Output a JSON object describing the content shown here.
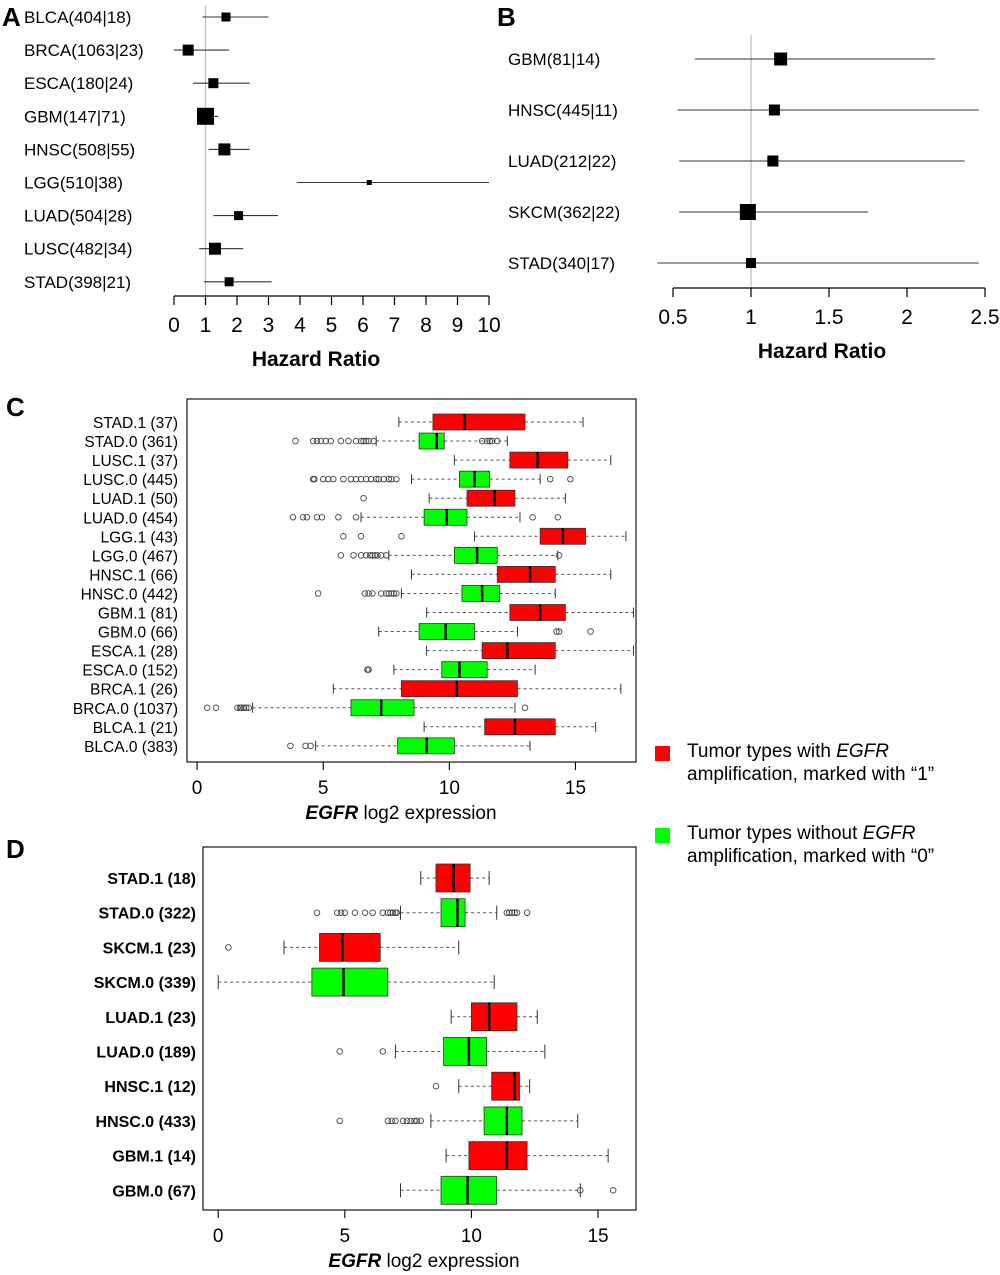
{
  "chart_data": [
    {
      "panel": "A",
      "type": "forest",
      "xlabel": "Hazard Ratio",
      "xlim": [
        0,
        10
      ],
      "xticks": [
        "0",
        "1",
        "2",
        "3",
        "4",
        "5",
        "6",
        "7",
        "8",
        "9",
        "10"
      ],
      "reference_line": 1,
      "rows": [
        {
          "label": "BLCA(404|18)",
          "hr": 1.65,
          "lo": 0.9,
          "hi": 3.0
        },
        {
          "label": "BRCA(1063|23)",
          "hr": 0.45,
          "lo": 0.0,
          "hi": 1.75
        },
        {
          "label": "ESCA(180|24)",
          "hr": 1.25,
          "lo": 0.6,
          "hi": 2.4
        },
        {
          "label": "GBM(147|71)",
          "hr": 1.0,
          "lo": 0.75,
          "hi": 1.4
        },
        {
          "label": "HNSC(508|55)",
          "hr": 1.6,
          "lo": 1.1,
          "hi": 2.4
        },
        {
          "label": "LGG(510|38)",
          "hr": 6.2,
          "lo": 3.9,
          "hi": 10.0
        },
        {
          "label": "LUAD(504|28)",
          "hr": 2.05,
          "lo": 1.25,
          "hi": 3.3
        },
        {
          "label": "LUSC(482|34)",
          "hr": 1.3,
          "lo": 0.8,
          "hi": 2.2
        },
        {
          "label": "STAD(398|21)",
          "hr": 1.75,
          "lo": 0.95,
          "hi": 3.1
        }
      ],
      "marker_sizes": [
        9,
        11,
        10,
        17,
        12,
        5,
        9,
        12,
        9
      ]
    },
    {
      "panel": "B",
      "type": "forest",
      "xlabel": "Hazard Ratio",
      "xlim": [
        0.5,
        2.5
      ],
      "xticks": [
        "0.5",
        "1",
        "1.5",
        "2",
        "2.5"
      ],
      "reference_line": 1,
      "rows": [
        {
          "label": "GBM(81|14)",
          "hr": 1.19,
          "lo": 0.64,
          "hi": 2.18
        },
        {
          "label": "HNSC(445|11)",
          "hr": 1.15,
          "lo": 0.53,
          "hi": 2.46
        },
        {
          "label": "LUAD(212|22)",
          "hr": 1.14,
          "lo": 0.54,
          "hi": 2.37
        },
        {
          "label": "SKCM(362|22)",
          "hr": 0.98,
          "lo": 0.54,
          "hi": 1.75
        },
        {
          "label": "STAD(340|17)",
          "hr": 1.0,
          "lo": 0.4,
          "hi": 2.46
        }
      ],
      "marker_sizes": [
        13,
        11,
        11,
        16,
        10
      ]
    },
    {
      "panel": "C",
      "type": "boxplot",
      "xlabel_italic": "EGFR",
      "xlabel_rest": " log2 expression",
      "xlim": [
        -0.4,
        17.4
      ],
      "xticks": [
        "0",
        "5",
        "10",
        "15"
      ],
      "categories": [
        {
          "label": "STAD.1 (37)",
          "group": 1,
          "wlo": 8.0,
          "q1": 9.35,
          "med": 10.6,
          "q3": 13.0,
          "whi": 15.3,
          "out": []
        },
        {
          "label": "STAD.0 (361)",
          "group": 0,
          "wlo": 7.1,
          "q1": 8.8,
          "med": 9.5,
          "q3": 9.8,
          "whi": 12.3,
          "out": [
            3.9,
            4.6,
            4.75,
            4.9,
            5.1,
            5.3,
            5.7,
            6.0,
            6.3,
            6.5,
            6.6,
            6.7,
            6.8,
            7.0,
            11.3,
            11.5,
            11.6,
            11.7,
            11.9
          ]
        },
        {
          "label": "LUSC.1 (37)",
          "group": 1,
          "wlo": 10.2,
          "q1": 12.4,
          "med": 13.5,
          "q3": 14.7,
          "whi": 16.4,
          "out": []
        },
        {
          "label": "LUSC.0 (445)",
          "group": 0,
          "wlo": 8.5,
          "q1": 10.4,
          "med": 11.0,
          "q3": 11.6,
          "whi": 13.6,
          "out": [
            4.6,
            4.65,
            5.0,
            5.2,
            5.4,
            5.8,
            6.1,
            6.3,
            6.5,
            6.7,
            6.9,
            7.1,
            7.2,
            7.4,
            7.6,
            7.7,
            7.9,
            14.0,
            14.8
          ]
        },
        {
          "label": "LUAD.1 (50)",
          "group": 1,
          "wlo": 9.2,
          "q1": 10.7,
          "med": 11.8,
          "q3": 12.6,
          "whi": 14.6,
          "out": [
            6.6
          ]
        },
        {
          "label": "LUAD.0 (454)",
          "group": 0,
          "wlo": 6.5,
          "q1": 9.0,
          "med": 9.9,
          "q3": 10.7,
          "whi": 12.8,
          "out": [
            3.8,
            4.2,
            4.35,
            4.75,
            4.95,
            5.6,
            6.3,
            13.3,
            14.3
          ]
        },
        {
          "label": "LGG.1 (43)",
          "group": 1,
          "wlo": 11.0,
          "q1": 13.6,
          "med": 14.5,
          "q3": 15.4,
          "whi": 17.0,
          "out": [
            5.8,
            6.5,
            8.1
          ]
        },
        {
          "label": "LGG.0 (467)",
          "group": 0,
          "wlo": 7.6,
          "q1": 10.2,
          "med": 11.1,
          "q3": 11.9,
          "whi": 14.3,
          "out": [
            5.7,
            6.2,
            6.5,
            6.7,
            6.85,
            6.95,
            7.05,
            7.15,
            7.3,
            7.5,
            14.35
          ]
        },
        {
          "label": "HNSC.1 (66)",
          "group": 1,
          "wlo": 8.5,
          "q1": 11.9,
          "med": 13.2,
          "q3": 14.2,
          "whi": 16.4,
          "out": []
        },
        {
          "label": "HNSC.0 (442)",
          "group": 0,
          "wlo": 8.1,
          "q1": 10.5,
          "med": 11.3,
          "q3": 12.0,
          "whi": 14.2,
          "out": [
            4.8,
            6.65,
            6.8,
            6.95,
            7.3,
            7.5,
            7.6,
            7.7,
            7.8,
            7.9
          ]
        },
        {
          "label": "GBM.1 (81)",
          "group": 1,
          "wlo": 9.1,
          "q1": 12.4,
          "med": 13.6,
          "q3": 14.6,
          "whi": 17.3,
          "out": []
        },
        {
          "label": "GBM.0 (66)",
          "group": 0,
          "wlo": 7.2,
          "q1": 8.8,
          "med": 9.85,
          "q3": 11.0,
          "whi": 12.7,
          "out": [
            14.25,
            14.35,
            15.6
          ]
        },
        {
          "label": "ESCA.1 (28)",
          "group": 1,
          "wlo": 9.1,
          "q1": 11.3,
          "med": 12.3,
          "q3": 14.2,
          "whi": 17.3,
          "out": []
        },
        {
          "label": "ESCA.0 (152)",
          "group": 0,
          "wlo": 7.8,
          "q1": 9.7,
          "med": 10.4,
          "q3": 11.5,
          "whi": 13.4,
          "out": [
            6.75,
            6.8
          ]
        },
        {
          "label": "BRCA.1 (26)",
          "group": 1,
          "wlo": 5.4,
          "q1": 8.1,
          "med": 10.3,
          "q3": 12.7,
          "whi": 16.8,
          "out": []
        },
        {
          "label": "BRCA.0 (1037)",
          "group": 0,
          "wlo": 2.2,
          "q1": 6.1,
          "med": 7.3,
          "q3": 8.6,
          "whi": 12.6,
          "out": [
            0.4,
            0.75,
            1.6,
            1.7,
            1.75,
            1.85,
            1.95,
            2.05,
            13.0
          ]
        },
        {
          "label": "BLCA.1 (21)",
          "group": 1,
          "wlo": 9.0,
          "q1": 11.4,
          "med": 12.6,
          "q3": 14.2,
          "whi": 15.8,
          "out": []
        },
        {
          "label": "BLCA.0 (383)",
          "group": 0,
          "wlo": 4.7,
          "q1": 7.95,
          "med": 9.1,
          "q3": 10.2,
          "whi": 13.2,
          "out": [
            3.7,
            4.3,
            4.5
          ]
        }
      ]
    },
    {
      "panel": "D",
      "type": "boxplot",
      "xlabel_italic": "EGFR",
      "xlabel_rest": " log2 expression",
      "xlim": [
        -0.6,
        16.5
      ],
      "xticks": [
        "0",
        "5",
        "10",
        "15"
      ],
      "categories": [
        {
          "label": "STAD.1 (18)",
          "group": 1,
          "wlo": 8.0,
          "q1": 8.6,
          "med": 9.3,
          "q3": 9.95,
          "whi": 10.7,
          "out": []
        },
        {
          "label": "STAD.0 (322)",
          "group": 0,
          "wlo": 7.2,
          "q1": 8.8,
          "med": 9.45,
          "q3": 9.75,
          "whi": 11.0,
          "out": [
            3.9,
            4.7,
            4.85,
            5.0,
            5.4,
            5.8,
            6.1,
            6.5,
            6.7,
            6.8,
            6.9,
            7.0,
            7.05,
            11.4,
            11.5,
            11.6,
            11.7,
            11.8,
            12.2
          ]
        },
        {
          "label": "SKCM.1 (23)",
          "group": 1,
          "wlo": 2.6,
          "q1": 4.0,
          "med": 4.9,
          "q3": 6.4,
          "whi": 9.5,
          "out": [
            0.4
          ]
        },
        {
          "label": "SKCM.0 (339)",
          "group": 0,
          "wlo": 0.0,
          "q1": 3.7,
          "med": 4.95,
          "q3": 6.7,
          "whi": 10.9,
          "out": []
        },
        {
          "label": "LUAD.1 (23)",
          "group": 1,
          "wlo": 9.2,
          "q1": 10.0,
          "med": 10.7,
          "q3": 11.8,
          "whi": 12.6,
          "out": []
        },
        {
          "label": "LUAD.0 (189)",
          "group": 0,
          "wlo": 7.0,
          "q1": 8.9,
          "med": 9.9,
          "q3": 10.6,
          "whi": 12.9,
          "out": [
            4.8,
            6.5
          ]
        },
        {
          "label": "HNSC.1 (12)",
          "group": 1,
          "wlo": 9.5,
          "q1": 10.8,
          "med": 11.7,
          "q3": 11.9,
          "whi": 12.3,
          "out": [
            8.6
          ]
        },
        {
          "label": "HNSC.0 (433)",
          "group": 0,
          "wlo": 8.4,
          "q1": 10.5,
          "med": 11.4,
          "q3": 12.0,
          "whi": 14.2,
          "out": [
            4.8,
            6.7,
            6.85,
            7.0,
            7.3,
            7.45,
            7.6,
            7.75,
            7.85,
            8.0
          ]
        },
        {
          "label": "GBM.1 (14)",
          "group": 1,
          "wlo": 9.0,
          "q1": 9.9,
          "med": 11.4,
          "q3": 12.2,
          "whi": 15.4,
          "out": []
        },
        {
          "label": "GBM.0 (67)",
          "group": 0,
          "wlo": 7.2,
          "q1": 8.8,
          "med": 9.85,
          "q3": 11.0,
          "whi": 14.3,
          "out": [
            14.3,
            15.6
          ]
        }
      ]
    }
  ],
  "panel_letters": {
    "a": "A",
    "b": "B",
    "c": "C",
    "d": "D"
  },
  "legend": {
    "red_line1_pre": "Tumor types with ",
    "red_line1_italic": "EGFR",
    "red_line2": "amplification, marked with “1”",
    "green_line1_pre": "Tumor types without ",
    "green_line1_italic": "EGFR",
    "green_line2": "amplification, marked with “0”"
  },
  "colors": {
    "red": "#ff0000",
    "green": "#00ff00",
    "marker": "#000000",
    "refline": "#bbbbbb",
    "whisker": "#555555"
  }
}
